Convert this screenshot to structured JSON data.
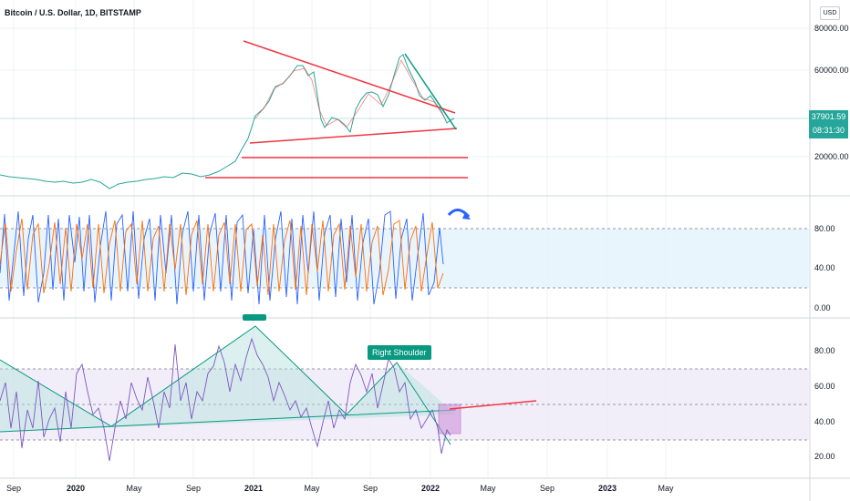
{
  "header": {
    "title": "Bitcoin / U.S. Dollar, 1D, BITSTAMP",
    "currency_button": "USD"
  },
  "price_scale": {
    "labels": [
      "80000.00",
      "60000.00",
      "20000.00"
    ],
    "current_price": "37901.59",
    "countdown": "08:31:30",
    "current_price_color": "#26a69a"
  },
  "stoch_scale": {
    "labels": [
      "80.00",
      "40.00",
      "0.00"
    ]
  },
  "rsi_scale": {
    "labels": [
      "80.00",
      "60.00",
      "40.00",
      "20.00"
    ]
  },
  "time_axis": [
    "Sep",
    "2020",
    "May",
    "Sep",
    "2021",
    "May",
    "Sep",
    "2022",
    "May",
    "Sep",
    "2023",
    "May"
  ],
  "annotations": {
    "right_shoulder": "Right Shoulder"
  },
  "colors": {
    "trendline_red": "#f23645",
    "trendline_green": "#089981",
    "stoch_k": "#2962ff",
    "stoch_d": "#ff6d00",
    "rsi_line": "#7e57c2",
    "rsi_band": "#ede7f6",
    "stoch_band": "#e3f2fd",
    "arrow": "#2962ff"
  },
  "icons": {
    "rotate_arrow": "curved-arrow-icon"
  }
}
